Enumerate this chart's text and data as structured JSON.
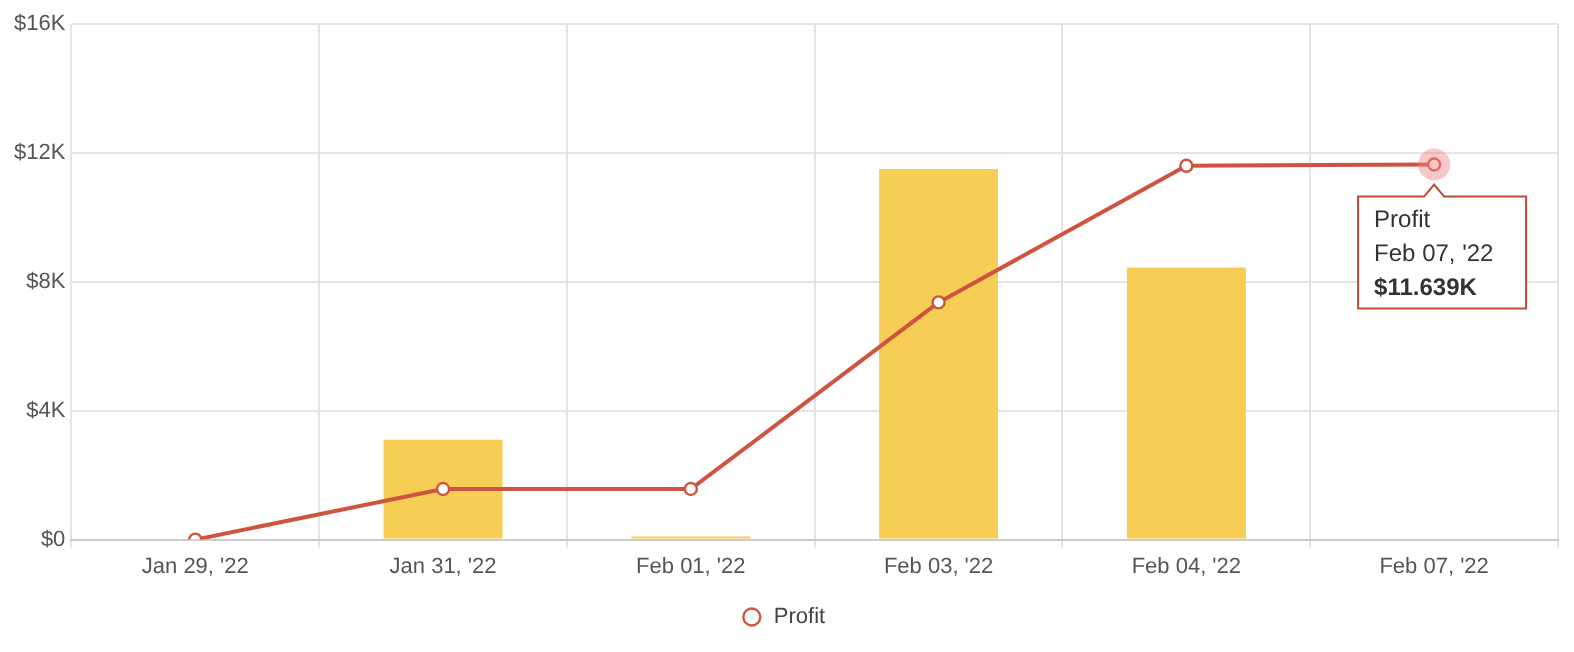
{
  "chart_data": {
    "type": "bar",
    "categories": [
      "Jan 29, '22",
      "Jan 31, '22",
      "Feb 01, '22",
      "Feb 03, '22",
      "Feb 04, '22",
      "Feb 07, '22"
    ],
    "series": [
      {
        "color": "#f6cd55",
        "values": [
          0,
          3100,
          100,
          11500,
          8440,
          0
        ]
      },
      {
        "type": "line",
        "name": "Profit",
        "color": "#cf5440",
        "values": [
          0,
          1570,
          1570,
          7360,
          11600,
          11639
        ]
      }
    ],
    "ylim": [
      0,
      16000
    ],
    "yticks": [
      {
        "value": 0,
        "label": "$0"
      },
      {
        "value": 4000,
        "label": "$4K"
      },
      {
        "value": 8000,
        "label": "$8K"
      },
      {
        "value": 12000,
        "label": "$12K"
      },
      {
        "value": 16000,
        "label": "$16K"
      }
    ],
    "grid": true,
    "legend": "bottom",
    "marker": "circle",
    "line_style": "solid",
    "annotations": [
      {
        "text": "Profit\nFeb 07, '22\n$11.639K",
        "x": "Feb 07, '22",
        "y": 11639
      }
    ]
  }
}
